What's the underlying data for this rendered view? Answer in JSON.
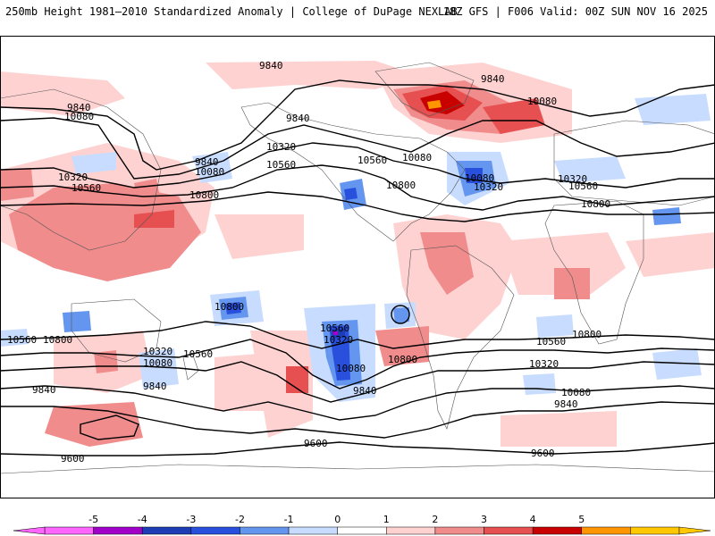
{
  "header": {
    "left": "250mb Height 1981–2010 Standardized Anomaly | College of DuPage NEXLAB",
    "right": "18Z GFS | F006 Valid: 00Z SUN NOV 16 2025"
  },
  "contour_labels": {
    "l9840_nw": "9840",
    "l10080_nw": "10080",
    "l9840_top": "9840",
    "l9840_pac": "9840",
    "l10080_pac": "10080",
    "l10320_pac": "10320",
    "l10560_pac": "10560",
    "l9840_na": "9840",
    "l10320_w": "10320",
    "l10560_w": "10560",
    "l10800_w": "10800",
    "l10320_na": "10320",
    "l10560_na": "10560",
    "l10800_na": "10800",
    "l10560_us": "10560",
    "l10080_us": "10080",
    "l10800_us": "10800",
    "l10080_atl": "10080",
    "l10320_atl": "10320",
    "l10080_eu": "10080",
    "l9840_eu": "9840",
    "l10320_e": "10320",
    "l10560_e": "10560",
    "l10800_e": "10800",
    "l10800_sp": "10800",
    "l10560_sw": "10560",
    "l10800_sw": "10800",
    "l10320_au": "10320",
    "l10080_au": "10080",
    "l10560_au": "10560",
    "l9840_sw": "9840",
    "l9840_au": "9840",
    "l10560_sam": "10560",
    "l10320_sam": "10320",
    "l10080_sam": "10080",
    "l10800_sam": "10800",
    "l9840_sam": "9840",
    "l10560_se": "10560",
    "l10800_se": "10800",
    "l10320_se": "10320",
    "l10080_se": "10080",
    "l9840_se": "9840",
    "l9600_s": "9600",
    "l9600_sw": "9600",
    "l9600_se": "9600"
  },
  "colorbar": {
    "ticks": [
      "-5",
      "-4",
      "-3",
      "-2",
      "-1",
      "0",
      "1",
      "2",
      "3",
      "4",
      "5"
    ],
    "colors": [
      "#ff66ff",
      "#a000c8",
      "#1e3cb4",
      "#2850dc",
      "#6496f0",
      "#c8dcff",
      "#ffffff",
      "#ffd2d2",
      "#f08c8c",
      "#e65050",
      "#c80000",
      "#ff9600",
      "#ffc800"
    ]
  }
}
